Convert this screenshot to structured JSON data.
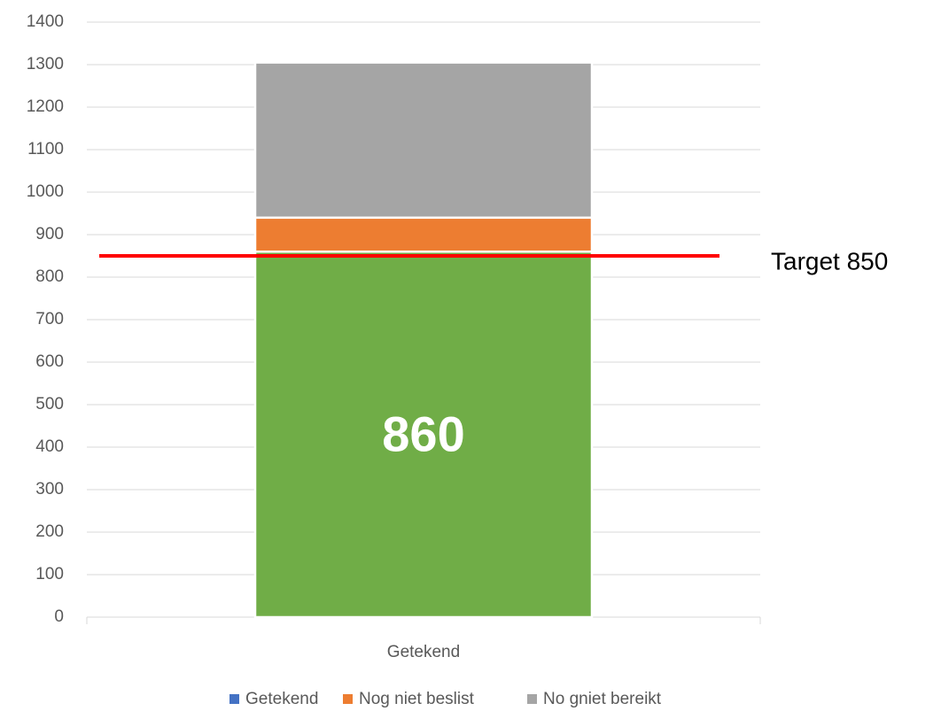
{
  "chart_data": {
    "type": "stacked_bar",
    "categories": [
      "Getekend"
    ],
    "series": [
      {
        "name": "Getekend",
        "color": "#70ad47",
        "legend_color": "#4472c4",
        "values": [
          860
        ],
        "value_labels": [
          "860"
        ]
      },
      {
        "name": "Nog niet beslist",
        "color": "#ed7d31",
        "legend_color": "#ed7d31",
        "values": [
          80
        ]
      },
      {
        "name": "No gniet bereikt",
        "color": "#a5a5a5",
        "legend_color": "#a5a5a5",
        "values": [
          365
        ]
      }
    ],
    "ylim": [
      0,
      1400
    ],
    "yticks": [
      0,
      100,
      200,
      300,
      400,
      500,
      600,
      700,
      800,
      900,
      1000,
      1100,
      1200,
      1300,
      1400
    ],
    "grid": true,
    "target": {
      "value": 850,
      "label": "Target 850",
      "color": "#ff0000"
    },
    "legend": "bottom"
  }
}
